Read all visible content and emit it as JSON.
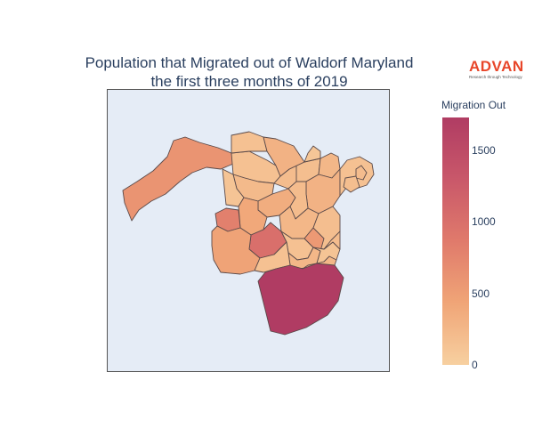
{
  "title_line1": "Population that Migrated out of Waldorf Maryland",
  "title_line2": "the first three months of 2019",
  "logo": {
    "word": "ADVAN",
    "tagline": "Research through Technology"
  },
  "legend": {
    "title": "Migration Out",
    "range": [
      0,
      1730
    ],
    "ticks": [
      "1500",
      "1000",
      "500",
      "0"
    ],
    "tick_values": [
      1500,
      1000,
      500,
      0
    ],
    "colorscale": [
      "#f7d0a0",
      "#f0a577",
      "#e07a6b",
      "#c9586a",
      "#b03c63"
    ]
  },
  "map_background": "#e5ecf6",
  "region_border": "#5a4a4a",
  "regions_values": [
    600,
    150,
    200,
    180,
    250,
    300,
    220,
    120,
    350,
    400,
    200,
    250,
    180,
    150,
    300,
    100,
    150,
    800,
    1000,
    450,
    150,
    550,
    250,
    120,
    200,
    150,
    200,
    180,
    250,
    1730
  ]
}
